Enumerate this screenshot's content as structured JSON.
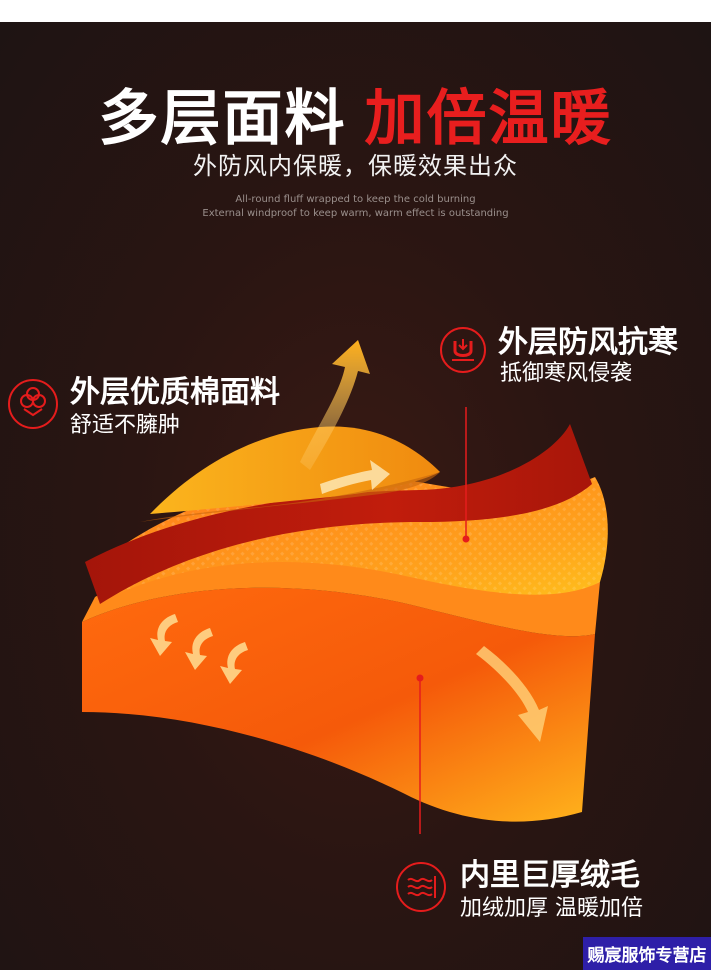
{
  "header": {
    "title_white": "多层面料",
    "title_red": "加倍温暖",
    "subtitle": "外防风内保暖，保暖效果出众",
    "english_line_1": "All-round fluff wrapped to keep the cold burning",
    "english_line_2": "External windproof to keep warm, warm effect is outstanding"
  },
  "features": {
    "outer_fabric": {
      "title": "外层优质棉面料",
      "desc": "舒适不臃肿",
      "icon": "cotton-icon"
    },
    "windproof": {
      "title": "外层防风抗寒",
      "desc": "抵御寒风侵袭",
      "icon": "magnet-icon"
    },
    "inner_fleece": {
      "title": "内里巨厚绒毛",
      "desc": "加绒加厚 温暖加倍",
      "icon": "heat-wave-icon"
    }
  },
  "shop": {
    "name": "赐宸服饰专营店"
  },
  "colors": {
    "accent_red": "#e81e1e",
    "layer_yellow": "#f7b01c",
    "layer_red": "#b8180c",
    "layer_orange": "#f57a12",
    "background": "#231614",
    "shop_badge": "#2e1fa8"
  }
}
